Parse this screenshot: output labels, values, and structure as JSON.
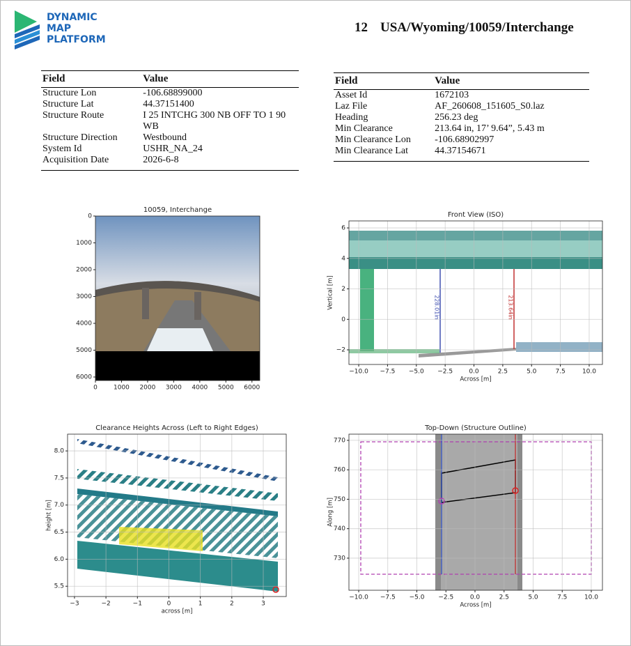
{
  "header": {
    "logo": [
      "DYNAMIC",
      "MAP",
      "PLATFORM"
    ],
    "page_number": "12",
    "title": "USA/Wyoming/10059/Interchange"
  },
  "tables": [
    {
      "columns": [
        "Field",
        "Value"
      ],
      "rows": [
        [
          "Structure Lon",
          "-106.68899000"
        ],
        [
          "Structure Lat",
          "44.37151400"
        ],
        [
          "Structure Route",
          "I 25 INTCHG 300 NB OFF TO 1 90 WB"
        ],
        [
          "Structure Direction",
          "Westbound"
        ],
        [
          "System Id",
          "USHR_NA_24"
        ],
        [
          "Acquisition Date",
          "2026-6-8"
        ]
      ]
    },
    {
      "columns": [
        "Field",
        "Value"
      ],
      "rows": [
        [
          "Asset Id",
          "1672103"
        ],
        [
          "Laz File",
          "AF_260608_151605_S0.laz"
        ],
        [
          "Heading",
          "256.23 deg"
        ],
        [
          "Min Clearance",
          "213.64 in, 17’ 9.64”, 5.43 m"
        ],
        [
          "Min Clearance Lon",
          "-106.68902997"
        ],
        [
          "Min Clearance Lat",
          "44.37154671"
        ]
      ]
    }
  ],
  "plots": [
    {
      "title": "10059, Interchange",
      "xlim": [
        0,
        6300
      ],
      "ylim": [
        6130,
        0
      ],
      "xticks": [
        0,
        1000,
        2000,
        3000,
        4000,
        5000,
        6000
      ],
      "yticks": [
        0,
        1000,
        2000,
        3000,
        4000,
        5000,
        6000
      ],
      "grid": false
    },
    {
      "title": "Front View (ISO)",
      "xlabel": "Across [m]",
      "ylabel": "Vertical [m]",
      "xlim": [
        -10.85,
        11.15
      ],
      "ylim": [
        -2.96,
        6.46
      ],
      "xticks": [
        {
          "value": -10,
          "label": "−10.0"
        },
        {
          "value": -7.5,
          "label": "−7.5"
        },
        {
          "value": -5,
          "label": "−5.0"
        },
        {
          "value": -2.5,
          "label": "−2.5"
        },
        {
          "value": 0,
          "label": "0.0"
        },
        2.5,
        {
          "value": 5,
          "label": "5.0"
        },
        7.5,
        {
          "value": 10,
          "label": "10.0"
        }
      ],
      "yticks": [
        {
          "value": -2,
          "label": "−2"
        },
        0,
        2,
        4,
        6
      ],
      "grid": true,
      "annotations": [
        "228.01in",
        "213.64in"
      ]
    },
    {
      "title": "Clearance Heights Across (Left to Right Edges)",
      "xlabel": "across [m]",
      "ylabel": "height [m]",
      "xlim": [
        -3.22,
        3.73
      ],
      "ylim": [
        5.31,
        8.31
      ],
      "xticks": [
        {
          "value": -3,
          "label": "−3"
        },
        {
          "value": -2,
          "label": "−2"
        },
        {
          "value": -1,
          "label": "−1"
        },
        0,
        1,
        2,
        3
      ],
      "yticks": [
        5.5,
        {
          "value": 6,
          "label": "6.0"
        },
        6.5,
        {
          "value": 7,
          "label": "7.0"
        },
        7.5,
        {
          "value": 8,
          "label": "8.0"
        }
      ],
      "grid": true
    },
    {
      "title": "Top-Down (Structure Outline)",
      "xlabel": "Across [m]",
      "ylabel": "Along [m]",
      "xlim": [
        -10.84,
        10.96
      ],
      "ylim": [
        719.1,
        772.1
      ],
      "xticks": [
        {
          "value": -10,
          "label": "−10.0"
        },
        {
          "value": -7.5,
          "label": "−7.5"
        },
        {
          "value": -5,
          "label": "−5.0"
        },
        {
          "value": -2.5,
          "label": "−2.5"
        },
        {
          "value": 0,
          "label": "0.0"
        },
        2.5,
        {
          "value": 5,
          "label": "5.0"
        },
        7.5,
        {
          "value": 10,
          "label": "10.0"
        }
      ],
      "yticks": [
        730,
        740,
        750,
        760,
        770
      ],
      "grid": true
    }
  ]
}
